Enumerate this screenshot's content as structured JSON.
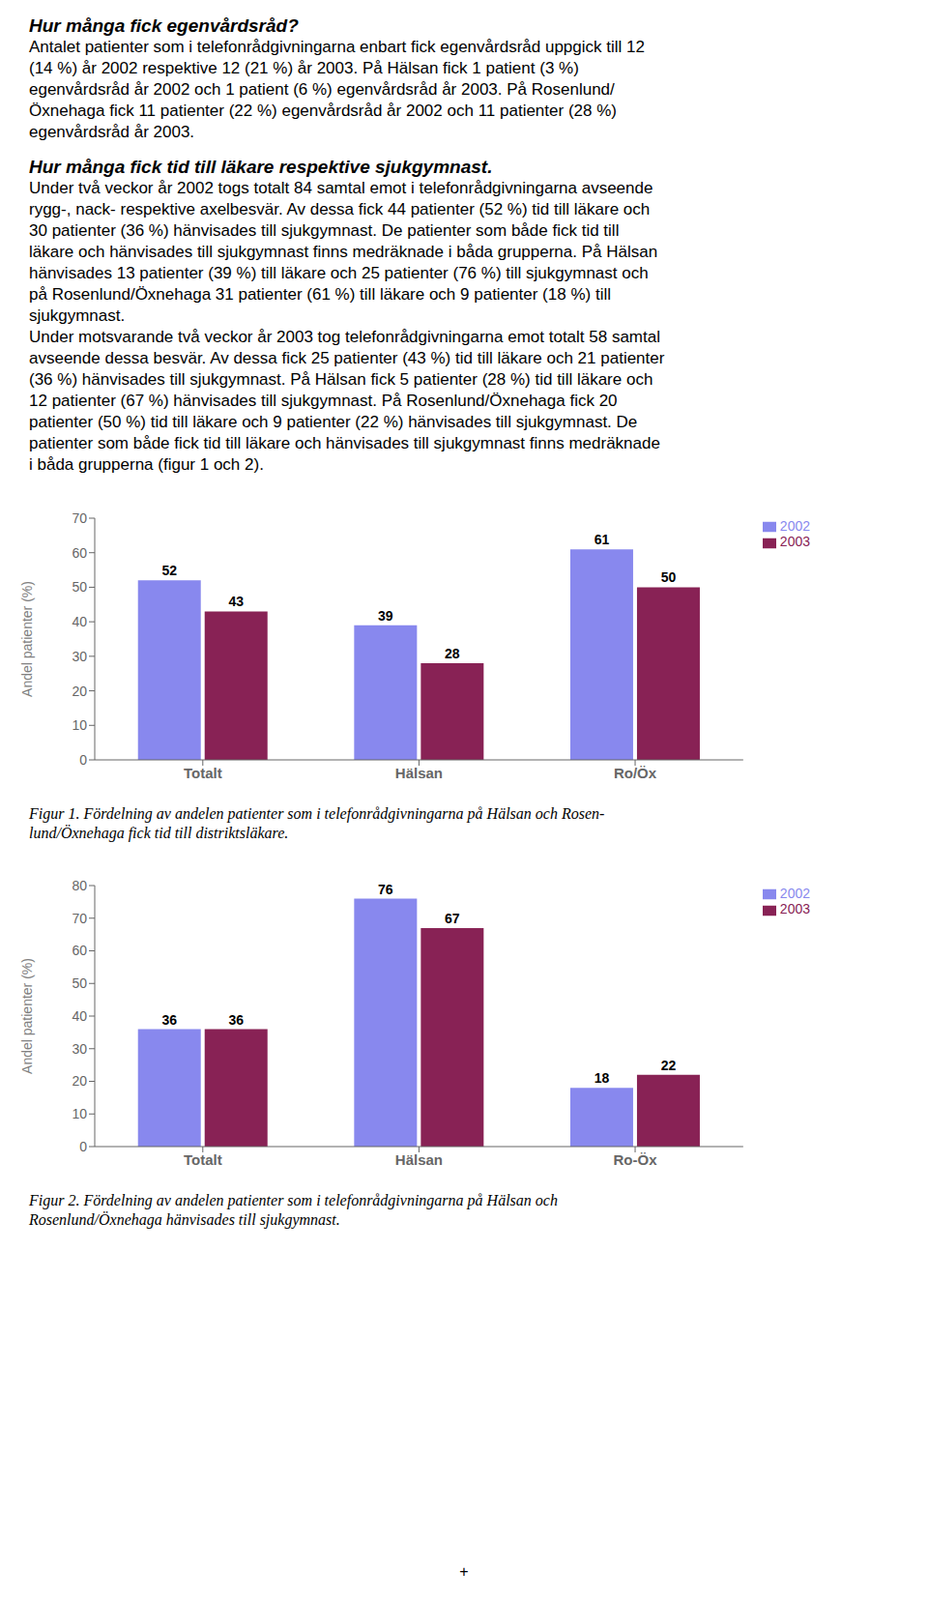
{
  "annotations": [
    {
      "text": "Hur många fick egenvårdsråd?",
      "heading": true
    },
    {
      "text": "Antalet patienter som i telefonrådgivningarna enbart fick egenvårdsråd uppgick till 12"
    },
    {
      "text": "(14 %) år 2002 respektive 12 (21 %) år 2003. På Hälsan fick 1 patient (3 %)"
    },
    {
      "text": "egenvårdsråd år 2002 och 1 patient (6 %) egenvårdsråd år 2003. På Rosenlund/"
    },
    {
      "text": "Öxnehaga fick 11 patienter (22 %) egenvårdsråd år 2002 och 11 patienter (28 %)"
    },
    {
      "text": "egenvårdsråd år 2003."
    },
    {
      "text": "Hur många fick tid till läkare respektive sjukgymnast.",
      "heading": true
    },
    {
      "text": "Under två veckor år 2002 togs totalt 84 samtal emot i telefonrådgivningarna avseende"
    },
    {
      "text": "rygg-, nack- respektive axelbesvär. Av dessa fick 44 patienter (52 %) tid till läkare och"
    },
    {
      "text": "30 patienter (36 %) hänvisades till sjukgymnast. De patienter som både fick tid till"
    },
    {
      "text": "läkare och hänvisades till sjukgymnast finns medräknade i båda grupperna. På Hälsan"
    },
    {
      "text": "hänvisades 13 patienter (39 %) till läkare och 25 patienter (76 %) till sjukgymnast och"
    },
    {
      "text": "på Rosenlund/Öxnehaga 31 patienter (61 %) till läkare och 9 patienter (18 %) till"
    },
    {
      "text": "sjukgymnast."
    },
    {
      "text": "Under motsvarande två veckor år 2003 tog telefonrådgivningarna emot totalt 58 samtal"
    },
    {
      "text": "avseende dessa besvär. Av dessa fick 25 patienter (43 %) tid till läkare och 21 patienter"
    },
    {
      "text": "(36 %) hänvisades till sjukgymnast. På Hälsan fick 5 patienter (28 %) tid till läkare och"
    },
    {
      "text": "12 patienter (67 %) hänvisades till sjukgymnast. På Rosenlund/Öxnehaga fick 20"
    },
    {
      "text": "patienter (50 %) tid till läkare och 9 patienter (22 %) hänvisades till sjukgymnast. De"
    },
    {
      "text": "patienter som både fick tid till läkare och hänvisades till sjukgymnast finns medräknade"
    },
    {
      "text": "i båda grupperna (figur 1 och 2)."
    }
  ],
  "chart_data": [
    {
      "type": "bar",
      "categories": [
        "Totalt",
        "Hälsan",
        "Ro/Öx"
      ],
      "series": [
        {
          "name": "2002",
          "color": "#8888EE",
          "values": [
            52,
            39,
            61
          ]
        },
        {
          "name": "2003",
          "color": "#882255",
          "values": [
            43,
            28,
            50
          ]
        }
      ],
      "ylabel": "Andel patienter (%)",
      "ylim": [
        0,
        70
      ],
      "yticks": [
        0,
        10,
        20,
        30,
        40,
        50,
        60,
        70
      ],
      "data_labels": true,
      "legend": "upper right",
      "caption": [
        "Figur 1. Fördelning av andelen  patienter som i telefonrådgivningarna på Hälsan och Rosen-",
        "lund/Öxnehaga fick tid till distriktsläkare."
      ]
    },
    {
      "type": "bar",
      "categories": [
        "Totalt",
        "Hälsan",
        "Ro-Öx"
      ],
      "series": [
        {
          "name": "2002",
          "color": "#8888EE",
          "values": [
            36,
            76,
            18
          ]
        },
        {
          "name": "2003",
          "color": "#882255",
          "values": [
            36,
            67,
            22
          ]
        }
      ],
      "ylabel": "Andel patienter (%)",
      "ylim": [
        0,
        80
      ],
      "yticks": [
        0,
        10,
        20,
        30,
        40,
        50,
        60,
        70,
        80
      ],
      "data_labels": true,
      "legend": "upper right",
      "caption": [
        "Figur 2. Fördelning av andelen  patienter som i telefonrådgivningarna på Hälsan och",
        "Rosenlund/Öxnehaga hänvisades till sjukgymnast."
      ]
    }
  ],
  "footer": "+"
}
